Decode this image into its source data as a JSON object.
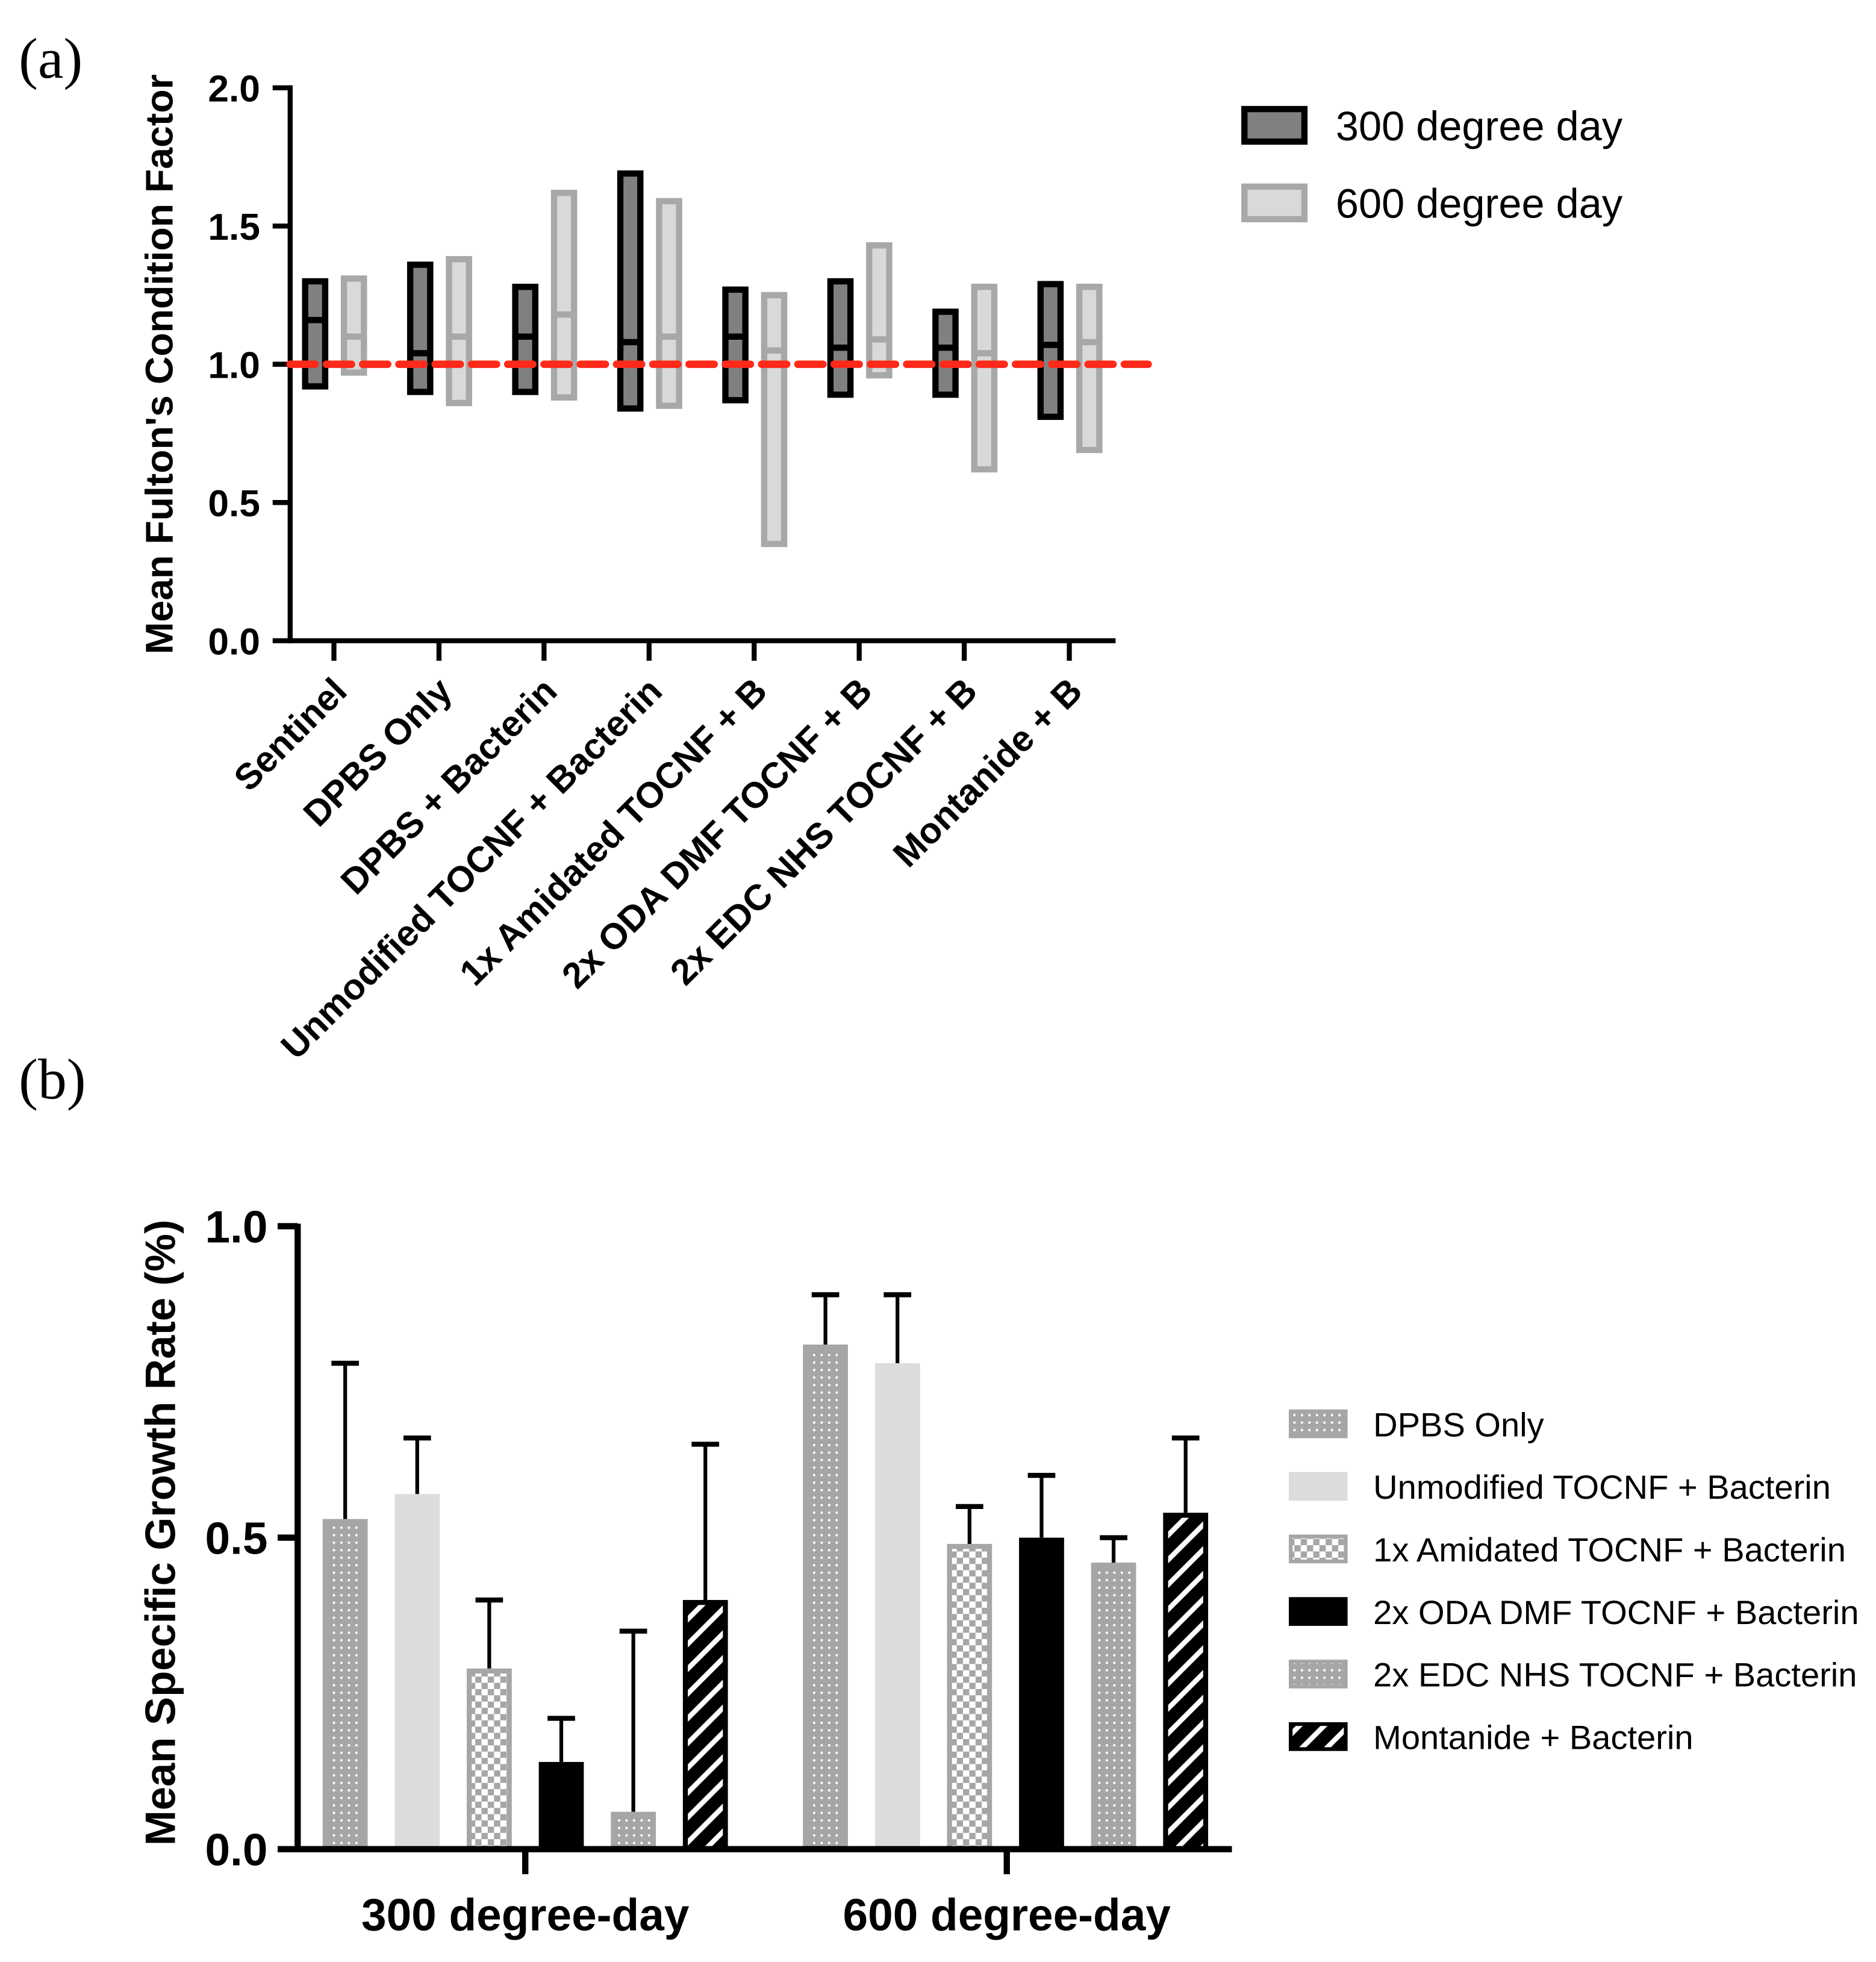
{
  "chart_data": [
    {
      "panel_label": "(a)",
      "type": "floating-bar",
      "ylabel": "Mean Fulton's Condition Factor",
      "ylim": [
        0,
        2.0
      ],
      "yticks": [
        "0.0",
        "0.5",
        "1.0",
        "1.5",
        "2.0"
      ],
      "ytick_values": [
        0,
        0.5,
        1.0,
        1.5,
        2.0
      ],
      "reference_line": 1.0,
      "reference_color": "#ff2a1a",
      "categories": [
        "Sentinel",
        "DPBS Only",
        "DPBS + Bacterin",
        "Unmodified TOCNF + Bacterin",
        "1x Amidated TOCNF  + B",
        "2x ODA DMF TOCNF + B",
        "2x EDC NHS TOCNF  + B",
        "Montanide + B"
      ],
      "legend": "top-right",
      "series": [
        {
          "name": "300 degree day",
          "fill": "#808080",
          "stroke": "#000000",
          "min": [
            0.92,
            0.9,
            0.9,
            0.84,
            0.87,
            0.89,
            0.89,
            0.81
          ],
          "mean": [
            1.16,
            1.04,
            1.1,
            1.08,
            1.1,
            1.06,
            1.06,
            1.07
          ],
          "max": [
            1.3,
            1.36,
            1.28,
            1.69,
            1.27,
            1.3,
            1.19,
            1.29
          ]
        },
        {
          "name": "600 degree day",
          "fill": "#d9d9d9",
          "stroke": "#a8a8a8",
          "min": [
            0.97,
            0.86,
            0.88,
            0.85,
            0.35,
            0.96,
            0.62,
            0.69
          ],
          "mean": [
            1.1,
            1.1,
            1.18,
            1.1,
            1.05,
            1.09,
            1.04,
            1.08
          ],
          "max": [
            1.31,
            1.38,
            1.62,
            1.59,
            1.25,
            1.43,
            1.28,
            1.28
          ]
        }
      ]
    },
    {
      "panel_label": "(b)",
      "type": "bar",
      "ylabel": "Mean Specific Growth Rate (%)",
      "ylim": [
        0,
        1.0
      ],
      "yticks": [
        "0.0",
        "0.5",
        "1.0"
      ],
      "ytick_values": [
        0,
        0.5,
        1.0
      ],
      "categories": [
        "300 degree-day",
        "600 degree-day"
      ],
      "legend": "right",
      "series": [
        {
          "name": "DPBS Only",
          "pattern": "dots",
          "values": [
            0.53,
            0.81
          ],
          "error_upper": [
            0.78,
            0.89
          ]
        },
        {
          "name": "Unmodified TOCNF + Bacterin",
          "pattern": "solid-light",
          "values": [
            0.57,
            0.78
          ],
          "error_upper": [
            0.66,
            0.89
          ]
        },
        {
          "name": "1x Amidated TOCNF + Bacterin",
          "pattern": "checker",
          "values": [
            0.29,
            0.49
          ],
          "error_upper": [
            0.4,
            0.55
          ]
        },
        {
          "name": "2x ODA DMF TOCNF + Bacterin",
          "pattern": "solid-black",
          "values": [
            0.14,
            0.5
          ],
          "error_upper": [
            0.21,
            0.6
          ]
        },
        {
          "name": "2x EDC NHS TOCNF + Bacterin",
          "pattern": "dots",
          "values": [
            0.06,
            0.46
          ],
          "error_upper": [
            0.35,
            0.5
          ]
        },
        {
          "name": "Montanide + Bacterin",
          "pattern": "stripes",
          "values": [
            0.4,
            0.54
          ],
          "error_upper": [
            0.65,
            0.66
          ]
        }
      ]
    }
  ]
}
